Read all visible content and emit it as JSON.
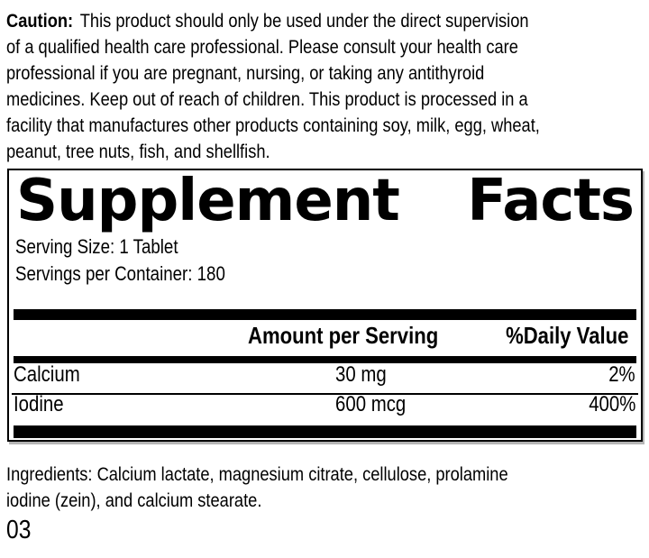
{
  "colors": {
    "text": "#000000",
    "background": "#ffffff",
    "rule": "#000000"
  },
  "caution": {
    "label": "Caution:",
    "intro": "This product should only be used under the direct supervision",
    "lines": [
      "of a qualified health care professional. Please consult your health care",
      "professional if you are pregnant, nursing, or taking any antithyroid",
      "medicines. Keep out of reach of children. This product is processed in a",
      "facility that manufactures other products containing soy, milk, egg, wheat,",
      "peanut, tree nuts, fish, and shellfish."
    ]
  },
  "panel": {
    "title": "Supplement Facts",
    "title_left": "Supplement",
    "title_right": "Facts",
    "serving_size": "Serving Size: 1 Tablet",
    "servings_per_container": "Servings per Container: 180",
    "columns": {
      "amount": "Amount per Serving",
      "daily_value": "%Daily Value"
    },
    "rows": [
      {
        "name": "Calcium",
        "amount": "30 mg",
        "daily_value": "2%"
      },
      {
        "name": "Iodine",
        "amount": "600 mcg",
        "daily_value": "400%"
      }
    ]
  },
  "ingredients": {
    "lines": [
      "Ingredients: Calcium lactate, magnesium citrate, cellulose, prolamine",
      "iodine (zein), and calcium stearate."
    ]
  },
  "footer": {
    "code": "03"
  }
}
